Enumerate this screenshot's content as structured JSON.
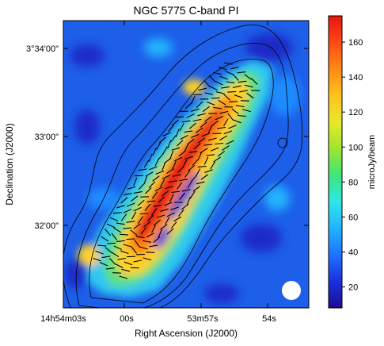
{
  "chart_data": {
    "type": "heatmap",
    "title": "NGC 5775   C-band   PI",
    "xlabel": "Right Ascension (J2000)",
    "ylabel": "Declination (J2000)",
    "colorbar_label": "microJy/beam",
    "colorbar_range": [
      8,
      175
    ],
    "colorbar_ticks": [
      20,
      40,
      60,
      80,
      100,
      120,
      140,
      160
    ],
    "colormap": [
      "#1a0f8c",
      "#1b2fe0",
      "#1e73ff",
      "#21b4ff",
      "#2ee6e6",
      "#3ee67a",
      "#9ee62e",
      "#e8e82a",
      "#ffc21e",
      "#ff8a14",
      "#ff4a12",
      "#e81410"
    ],
    "x_ticks": [
      "14h54m03s",
      "00s",
      "53m57s",
      "54s"
    ],
    "y_ticks": [
      "3°34'00\"",
      "33'00\"",
      "32'00\""
    ],
    "beam": "circle, lower-right",
    "overlays": [
      "polarization vectors",
      "total-intensity contours"
    ]
  }
}
